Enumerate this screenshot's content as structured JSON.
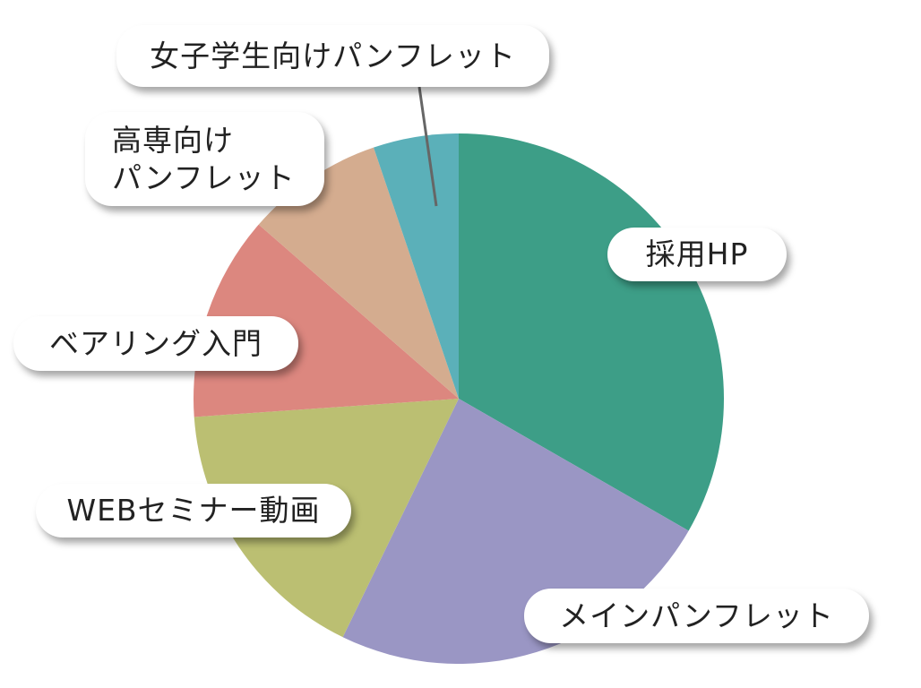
{
  "chart_data": {
    "type": "pie",
    "categories": [
      "採用HP",
      "メインパンフレット",
      "WEBセミナー動画",
      "ベアリング入門",
      "高専向け\nパンフレット",
      "女子学生向けパンフレット"
    ],
    "values": [
      33.3,
      23.9,
      16.7,
      12.5,
      8.4,
      5.2
    ],
    "colors": [
      "#3d9e87",
      "#9a96c4",
      "#bbbf72",
      "#dc877f",
      "#d4ac8f",
      "#5bb0b9"
    ]
  }
}
